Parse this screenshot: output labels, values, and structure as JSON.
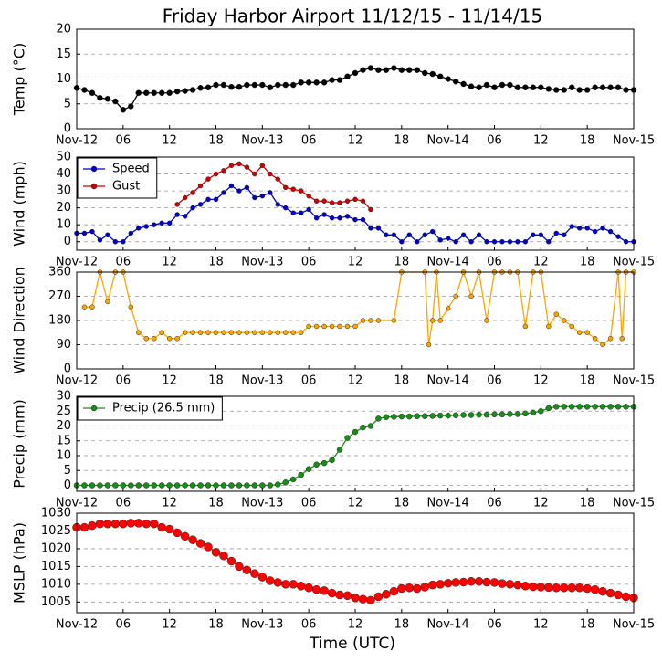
{
  "chart_data": [
    {
      "type": "line",
      "title": "Friday Harbor Airport 11/12/15 - 11/14/15",
      "ylabel": "Temp (°C)",
      "xlim": [
        0,
        72
      ],
      "xticks": [
        {
          "value": 0,
          "label": "Nov-12"
        },
        {
          "value": 6,
          "label": "06"
        },
        {
          "value": 12,
          "label": "12"
        },
        {
          "value": 18,
          "label": "18"
        },
        {
          "value": 24,
          "label": "Nov-13"
        },
        {
          "value": 30,
          "label": "06"
        },
        {
          "value": 36,
          "label": "12"
        },
        {
          "value": 42,
          "label": "18"
        },
        {
          "value": 48,
          "label": "Nov-14"
        },
        {
          "value": 54,
          "label": "06"
        },
        {
          "value": 60,
          "label": "12"
        },
        {
          "value": 66,
          "label": "18"
        },
        {
          "value": 72,
          "label": "Nov-15"
        }
      ],
      "ylim": [
        0,
        20
      ],
      "yticks": [
        0,
        5,
        10,
        15,
        20
      ],
      "grid": true,
      "x": [
        0,
        1,
        2,
        3,
        4,
        5,
        6,
        7,
        8,
        9,
        10,
        11,
        12,
        13,
        14,
        15,
        16,
        17,
        18,
        19,
        20,
        21,
        22,
        23,
        24,
        25,
        26,
        27,
        28,
        29,
        30,
        31,
        32,
        33,
        34,
        35,
        36,
        37,
        38,
        39,
        40,
        41,
        42,
        43,
        44,
        45,
        46,
        47,
        48,
        49,
        50,
        51,
        52,
        53,
        54,
        55,
        56,
        57,
        58,
        59,
        60,
        61,
        62,
        63,
        64,
        65,
        66,
        67,
        68,
        69,
        70,
        71,
        72
      ],
      "series": [
        {
          "color": "#000000",
          "values": [
            8.2,
            7.8,
            7.2,
            6.2,
            6.0,
            5.5,
            3.8,
            4.5,
            7.2,
            7.2,
            7.2,
            7.2,
            7.2,
            7.5,
            7.6,
            7.8,
            8.2,
            8.3,
            8.8,
            8.8,
            8.4,
            8.4,
            8.8,
            8.8,
            8.8,
            8.3,
            8.8,
            8.8,
            8.8,
            9.3,
            9.3,
            9.3,
            9.3,
            9.8,
            9.8,
            10.5,
            11.2,
            11.8,
            12.2,
            11.8,
            11.8,
            12.2,
            11.8,
            11.8,
            11.8,
            11.2,
            11.0,
            10.5,
            10.0,
            9.5,
            9.0,
            8.5,
            8.3,
            8.8,
            8.3,
            8.8,
            8.8,
            8.3,
            8.3,
            8.3,
            8.3,
            8.0,
            7.8,
            7.8,
            8.3,
            7.8,
            7.8,
            8.3,
            8.3,
            8.3,
            8.3,
            7.8,
            7.8
          ]
        }
      ]
    },
    {
      "type": "line",
      "ylabel": "Wind (mph)",
      "legend": "upper left",
      "xlim": [
        0,
        72
      ],
      "xticks": [
        {
          "value": 0,
          "label": "Nov-12"
        },
        {
          "value": 6,
          "label": "06"
        },
        {
          "value": 12,
          "label": "12"
        },
        {
          "value": 18,
          "label": "18"
        },
        {
          "value": 24,
          "label": "Nov-13"
        },
        {
          "value": 30,
          "label": "06"
        },
        {
          "value": 36,
          "label": "12"
        },
        {
          "value": 42,
          "label": "18"
        },
        {
          "value": 48,
          "label": "Nov-14"
        },
        {
          "value": 54,
          "label": "06"
        },
        {
          "value": 60,
          "label": "12"
        },
        {
          "value": 66,
          "label": "18"
        },
        {
          "value": 72,
          "label": "Nov-15"
        }
      ],
      "ylim": [
        -5,
        50
      ],
      "yticks": [
        0,
        10,
        20,
        30,
        40,
        50
      ],
      "grid": true,
      "x": [
        0,
        1,
        2,
        3,
        4,
        5,
        6,
        7,
        8,
        9,
        10,
        11,
        12,
        13,
        14,
        15,
        16,
        17,
        18,
        19,
        20,
        21,
        22,
        23,
        24,
        25,
        26,
        27,
        28,
        29,
        30,
        31,
        32,
        33,
        34,
        35,
        36,
        37,
        38,
        39,
        40,
        41,
        42,
        43,
        44,
        45,
        46,
        47,
        48,
        49,
        50,
        51,
        52,
        53,
        54,
        55,
        56,
        57,
        58,
        59,
        60,
        61,
        62,
        63,
        64,
        65,
        66,
        67,
        68,
        69,
        70,
        71,
        72
      ],
      "series": [
        {
          "name": "Speed",
          "color": "#0000cc",
          "values": [
            5,
            5,
            6,
            1,
            4,
            0,
            0,
            5,
            8,
            9,
            10,
            11,
            11,
            16,
            15,
            20,
            22,
            25,
            25,
            29,
            33,
            30,
            32,
            26,
            27,
            29,
            22,
            20,
            17,
            17,
            19,
            14,
            16,
            14,
            14,
            15,
            13,
            13,
            8,
            8,
            4,
            4,
            0,
            4,
            0,
            4,
            6,
            1,
            2,
            0,
            4,
            0,
            4,
            0,
            0,
            0,
            0,
            0,
            0,
            4,
            4,
            0,
            5,
            4,
            9,
            8,
            8,
            6,
            8,
            6,
            3,
            0,
            0
          ]
        },
        {
          "name": "Gust",
          "color": "#cc0000",
          "values": [
            null,
            null,
            null,
            null,
            null,
            null,
            null,
            null,
            null,
            null,
            null,
            null,
            null,
            22,
            26,
            29,
            33,
            37,
            40,
            42,
            45,
            46,
            44,
            40,
            45,
            40,
            37,
            32,
            31,
            30,
            27,
            24,
            24,
            23,
            23,
            24,
            25,
            24,
            19,
            null,
            null,
            null,
            null,
            null,
            null,
            null,
            null,
            null,
            null,
            null,
            null,
            null,
            null,
            null,
            null,
            null,
            null,
            null,
            null,
            null,
            null,
            null,
            null,
            null,
            null,
            null,
            null,
            null,
            null,
            null,
            null,
            null,
            null
          ]
        }
      ]
    },
    {
      "type": "line",
      "ylabel": "Wind Direction",
      "xlim": [
        0,
        72
      ],
      "xticks": [
        {
          "value": 0,
          "label": "Nov-12"
        },
        {
          "value": 6,
          "label": "06"
        },
        {
          "value": 12,
          "label": "12"
        },
        {
          "value": 18,
          "label": "18"
        },
        {
          "value": 24,
          "label": "Nov-13"
        },
        {
          "value": 30,
          "label": "06"
        },
        {
          "value": 36,
          "label": "12"
        },
        {
          "value": 42,
          "label": "18"
        },
        {
          "value": 48,
          "label": "Nov-14"
        },
        {
          "value": 54,
          "label": "06"
        },
        {
          "value": 60,
          "label": "12"
        },
        {
          "value": 66,
          "label": "18"
        },
        {
          "value": 72,
          "label": "Nov-15"
        }
      ],
      "ylim": [
        0,
        360
      ],
      "yticks": [
        0,
        90,
        180,
        270,
        360
      ],
      "grid": true,
      "x": [
        1,
        2,
        3,
        4,
        5,
        6,
        7,
        8,
        9,
        10,
        11,
        12,
        13,
        14,
        15,
        16,
        17,
        18,
        19,
        20,
        21,
        22,
        23,
        24,
        25,
        26,
        27,
        28,
        29,
        30,
        31,
        32,
        33,
        34,
        35,
        36,
        37,
        38,
        39,
        41,
        42,
        45,
        45.5,
        46,
        46.5,
        47,
        48,
        49,
        50,
        51,
        52,
        53,
        54,
        55,
        56,
        57,
        58,
        59,
        60,
        61,
        62,
        63,
        64,
        65,
        66,
        67,
        68,
        69,
        70,
        70.5,
        71,
        72
      ],
      "series": [
        {
          "color": "#ffa500",
          "values": [
            230,
            230,
            360,
            250,
            360,
            360,
            230,
            135,
            113,
            113,
            135,
            113,
            113,
            135,
            135,
            135,
            135,
            135,
            135,
            135,
            135,
            135,
            135,
            135,
            135,
            135,
            135,
            135,
            135,
            158,
            158,
            158,
            158,
            158,
            158,
            158,
            180,
            180,
            180,
            180,
            360,
            360,
            90,
            180,
            360,
            180,
            225,
            270,
            360,
            270,
            360,
            180,
            360,
            360,
            360,
            360,
            158,
            360,
            360,
            158,
            203,
            180,
            158,
            135,
            135,
            113,
            90,
            113,
            360,
            113,
            360,
            360
          ]
        }
      ]
    },
    {
      "type": "line",
      "ylabel": "Precip (mm)",
      "legend": "upper left",
      "xlim": [
        0,
        72
      ],
      "xticks": [
        {
          "value": 0,
          "label": "Nov-12"
        },
        {
          "value": 6,
          "label": "06"
        },
        {
          "value": 12,
          "label": "12"
        },
        {
          "value": 18,
          "label": "18"
        },
        {
          "value": 24,
          "label": "Nov-13"
        },
        {
          "value": 30,
          "label": "06"
        },
        {
          "value": 36,
          "label": "12"
        },
        {
          "value": 42,
          "label": "18"
        },
        {
          "value": 48,
          "label": "Nov-14"
        },
        {
          "value": 54,
          "label": "06"
        },
        {
          "value": 60,
          "label": "12"
        },
        {
          "value": 66,
          "label": "18"
        },
        {
          "value": 72,
          "label": "Nov-15"
        }
      ],
      "ylim": [
        -2,
        30
      ],
      "yticks": [
        0,
        5,
        10,
        15,
        20,
        25,
        30
      ],
      "grid": true,
      "x": [
        0,
        1,
        2,
        3,
        4,
        5,
        6,
        7,
        8,
        9,
        10,
        11,
        12,
        13,
        14,
        15,
        16,
        17,
        18,
        19,
        20,
        21,
        22,
        23,
        24,
        25,
        26,
        27,
        28,
        29,
        30,
        31,
        32,
        33,
        34,
        35,
        36,
        37,
        38,
        39,
        40,
        41,
        42,
        43,
        44,
        45,
        46,
        47,
        48,
        49,
        50,
        51,
        52,
        53,
        54,
        55,
        56,
        57,
        58,
        59,
        60,
        61,
        62,
        63,
        64,
        65,
        66,
        67,
        68,
        69,
        70,
        71,
        72
      ],
      "series": [
        {
          "name": "Precip (26.5 mm)",
          "color": "#1a8c1a",
          "values": [
            0,
            0,
            0,
            0,
            0,
            0,
            0,
            0,
            0,
            0,
            0,
            0,
            0,
            0,
            0,
            0,
            0,
            0,
            0,
            0,
            0,
            0,
            0,
            0,
            0,
            0,
            0.3,
            1,
            2,
            3.5,
            5.5,
            7,
            7.5,
            8.5,
            12,
            16,
            18,
            19.5,
            20,
            22.5,
            23,
            23.1,
            23.2,
            23.2,
            23.3,
            23.3,
            23.4,
            23.5,
            23.5,
            23.6,
            23.7,
            23.7,
            23.8,
            23.8,
            23.9,
            23.9,
            24,
            24,
            24.2,
            24.5,
            25,
            26,
            26.5,
            26.5,
            26.5,
            26.5,
            26.5,
            26.5,
            26.5,
            26.5,
            26.5,
            26.5,
            26.5
          ]
        }
      ]
    },
    {
      "type": "line",
      "ylabel": "MSLP (hPa)",
      "xlabel": "Time (UTC)",
      "xlim": [
        0,
        72
      ],
      "xticks": [
        {
          "value": 0,
          "label": "Nov-12"
        },
        {
          "value": 6,
          "label": "06"
        },
        {
          "value": 12,
          "label": "12"
        },
        {
          "value": 18,
          "label": "18"
        },
        {
          "value": 24,
          "label": "Nov-13"
        },
        {
          "value": 30,
          "label": "06"
        },
        {
          "value": 36,
          "label": "12"
        },
        {
          "value": 42,
          "label": "18"
        },
        {
          "value": 48,
          "label": "Nov-14"
        },
        {
          "value": 54,
          "label": "06"
        },
        {
          "value": 60,
          "label": "12"
        },
        {
          "value": 66,
          "label": "18"
        },
        {
          "value": 72,
          "label": "Nov-15"
        }
      ],
      "ylim": [
        1002,
        1030
      ],
      "yticks": [
        1005,
        1010,
        1015,
        1020,
        1025,
        1030
      ],
      "grid": true,
      "x": [
        0,
        1,
        2,
        3,
        4,
        5,
        6,
        7,
        8,
        9,
        10,
        11,
        12,
        13,
        14,
        15,
        16,
        17,
        18,
        19,
        20,
        21,
        22,
        23,
        24,
        25,
        26,
        27,
        28,
        29,
        30,
        31,
        32,
        33,
        34,
        35,
        36,
        37,
        38,
        39,
        40,
        41,
        42,
        43,
        44,
        45,
        46,
        47,
        48,
        49,
        50,
        51,
        52,
        53,
        54,
        55,
        56,
        57,
        58,
        59,
        60,
        61,
        62,
        63,
        64,
        65,
        66,
        67,
        68,
        69,
        70,
        71,
        72
      ],
      "series": [
        {
          "color": "#ff0000",
          "values": [
            1026,
            1026,
            1026.5,
            1027,
            1027,
            1027,
            1027,
            1027.2,
            1027.2,
            1027,
            1027,
            1026,
            1025.5,
            1024.5,
            1023.5,
            1022.5,
            1021.5,
            1020.5,
            1019,
            1018,
            1016.5,
            1015,
            1014,
            1013,
            1012,
            1011,
            1010.5,
            1010,
            1010,
            1009.5,
            1009,
            1008.5,
            1008.2,
            1007.5,
            1007,
            1006.8,
            1006.2,
            1005.8,
            1005.5,
            1006.5,
            1007.2,
            1008,
            1008.8,
            1009,
            1008.8,
            1009.2,
            1009.8,
            1010,
            1010.3,
            1010.5,
            1010.6,
            1010.8,
            1010.8,
            1010.6,
            1010.5,
            1010.2,
            1010,
            1009.8,
            1009.5,
            1009.3,
            1009.2,
            1009.1,
            1009,
            1009,
            1009,
            1009,
            1008.8,
            1008.5,
            1008,
            1007.5,
            1007,
            1006.5,
            1006.2
          ]
        }
      ]
    }
  ]
}
